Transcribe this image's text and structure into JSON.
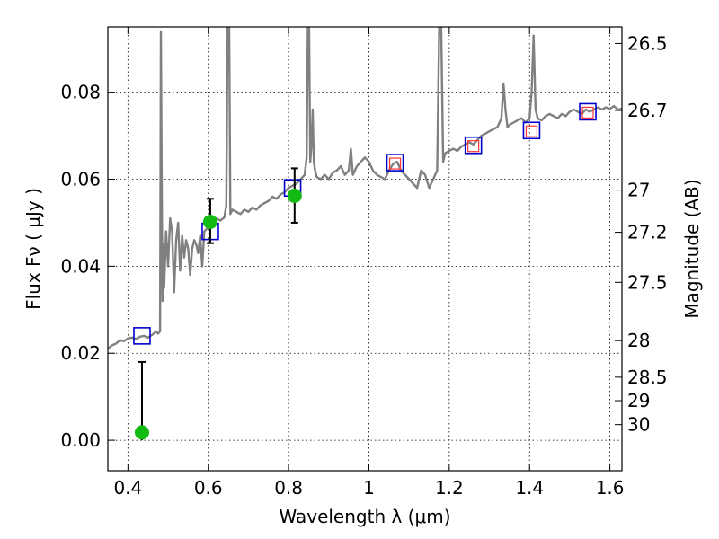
{
  "chart_data": {
    "type": "scatter",
    "title": "",
    "xlabel": "Wavelength  λ (μm)",
    "ylabel": "Flux  Fν  ( μJy )",
    "ylabel_right": "Magnitude (AB)",
    "xlim": [
      0.35,
      1.63
    ],
    "ylim": [
      -0.007,
      0.095
    ],
    "grid": true,
    "legend": "none",
    "x_ticks": [
      0.4,
      0.6,
      0.8,
      1.0,
      1.2,
      1.4,
      1.6
    ],
    "x_tick_labels": [
      "0.4",
      "0.6",
      "0.8",
      "1",
      "1.2",
      "1.4",
      "1.6"
    ],
    "y_ticks": [
      0.0,
      0.02,
      0.04,
      0.06,
      0.08
    ],
    "y_tick_labels": [
      "0.00",
      "0.02",
      "0.04",
      "0.06",
      "0.08"
    ],
    "right_ticks": [
      {
        "label": "26.5",
        "flux": 0.0912
      },
      {
        "label": "26.7",
        "flux": 0.0758
      },
      {
        "label": "27",
        "flux": 0.0575
      },
      {
        "label": "27.2",
        "flux": 0.0478
      },
      {
        "label": "27.5",
        "flux": 0.0363
      },
      {
        "label": "28",
        "flux": 0.0229
      },
      {
        "label": "28.5",
        "flux": 0.0145
      },
      {
        "label": "29",
        "flux": 0.0091
      },
      {
        "label": "30",
        "flux": 0.0036
      }
    ],
    "series": [
      {
        "type": "line",
        "color": "#808080",
        "x": [
          0.35,
          0.36,
          0.37,
          0.38,
          0.39,
          0.4,
          0.41,
          0.42,
          0.43,
          0.44,
          0.45,
          0.46,
          0.465,
          0.47,
          0.475,
          0.48,
          0.482,
          0.484,
          0.486,
          0.488,
          0.49,
          0.495,
          0.5,
          0.505,
          0.51,
          0.515,
          0.52,
          0.525,
          0.53,
          0.535,
          0.54,
          0.545,
          0.55,
          0.555,
          0.56,
          0.565,
          0.57,
          0.575,
          0.58,
          0.585,
          0.59,
          0.6,
          0.61,
          0.62,
          0.63,
          0.64,
          0.645,
          0.648,
          0.652,
          0.655,
          0.66,
          0.67,
          0.68,
          0.69,
          0.7,
          0.71,
          0.72,
          0.73,
          0.74,
          0.75,
          0.76,
          0.77,
          0.78,
          0.79,
          0.8,
          0.81,
          0.82,
          0.83,
          0.84,
          0.845,
          0.848,
          0.851,
          0.854,
          0.857,
          0.86,
          0.863,
          0.866,
          0.87,
          0.88,
          0.89,
          0.9,
          0.91,
          0.92,
          0.93,
          0.94,
          0.95,
          0.955,
          0.96,
          0.97,
          0.98,
          0.99,
          1.0,
          1.01,
          1.02,
          1.03,
          1.04,
          1.05,
          1.06,
          1.07,
          1.08,
          1.09,
          1.1,
          1.11,
          1.12,
          1.13,
          1.14,
          1.15,
          1.16,
          1.17,
          1.175,
          1.18,
          1.185,
          1.19,
          1.2,
          1.21,
          1.22,
          1.23,
          1.24,
          1.25,
          1.26,
          1.27,
          1.28,
          1.29,
          1.3,
          1.31,
          1.32,
          1.33,
          1.335,
          1.34,
          1.345,
          1.35,
          1.36,
          1.37,
          1.38,
          1.39,
          1.4,
          1.405,
          1.41,
          1.415,
          1.42,
          1.43,
          1.44,
          1.45,
          1.46,
          1.47,
          1.48,
          1.49,
          1.5,
          1.51,
          1.52,
          1.53,
          1.54,
          1.55,
          1.56,
          1.57,
          1.58,
          1.59,
          1.6,
          1.61,
          1.62,
          1.63
        ],
        "y": [
          0.021,
          0.0218,
          0.0222,
          0.023,
          0.0228,
          0.0234,
          0.0236,
          0.0233,
          0.0238,
          0.024,
          0.0236,
          0.0242,
          0.0246,
          0.025,
          0.0245,
          0.025,
          0.094,
          0.06,
          0.032,
          0.045,
          0.035,
          0.048,
          0.04,
          0.051,
          0.048,
          0.034,
          0.046,
          0.05,
          0.039,
          0.047,
          0.042,
          0.046,
          0.044,
          0.038,
          0.044,
          0.046,
          0.045,
          0.043,
          0.047,
          0.04,
          0.048,
          0.049,
          0.05,
          0.051,
          0.0505,
          0.0512,
          0.054,
          0.095,
          0.095,
          0.052,
          0.053,
          0.0525,
          0.052,
          0.053,
          0.0525,
          0.0535,
          0.053,
          0.054,
          0.0545,
          0.055,
          0.056,
          0.0555,
          0.0565,
          0.057,
          0.058,
          0.0585,
          0.059,
          0.06,
          0.061,
          0.065,
          0.095,
          0.095,
          0.064,
          0.068,
          0.076,
          0.064,
          0.062,
          0.0605,
          0.06,
          0.061,
          0.06,
          0.0615,
          0.062,
          0.063,
          0.061,
          0.062,
          0.067,
          0.061,
          0.063,
          0.064,
          0.065,
          0.064,
          0.062,
          0.061,
          0.0605,
          0.06,
          0.062,
          0.0635,
          0.064,
          0.062,
          0.061,
          0.06,
          0.059,
          0.058,
          0.062,
          0.061,
          0.058,
          0.06,
          0.062,
          0.095,
          0.095,
          0.064,
          0.066,
          0.0665,
          0.067,
          0.0665,
          0.0675,
          0.068,
          0.0685,
          0.068,
          0.069,
          0.07,
          0.0705,
          0.071,
          0.0715,
          0.072,
          0.074,
          0.082,
          0.076,
          0.072,
          0.0725,
          0.073,
          0.0735,
          0.074,
          0.073,
          0.074,
          0.08,
          0.093,
          0.076,
          0.074,
          0.0735,
          0.0745,
          0.075,
          0.0745,
          0.074,
          0.075,
          0.0745,
          0.0755,
          0.076,
          0.0755,
          0.075,
          0.076,
          0.0755,
          0.076,
          0.0765,
          0.076,
          0.0765,
          0.0762,
          0.0768,
          0.076,
          0.0762
        ]
      },
      {
        "type": "scatter",
        "marker": "square-open",
        "color": "#0000cc",
        "x": [
          0.435,
          0.605,
          0.81,
          1.065,
          1.26,
          1.405,
          1.545
        ],
        "y": [
          0.024,
          0.048,
          0.058,
          0.0638,
          0.0678,
          0.0712,
          0.0755
        ]
      },
      {
        "type": "scatter",
        "marker": "square-open",
        "color": "#ff3333",
        "x": [
          1.065,
          1.26,
          1.405,
          1.545
        ],
        "y": [
          0.0636,
          0.0676,
          0.071,
          0.0753
        ]
      },
      {
        "type": "scatter",
        "marker": "circle-filled",
        "color": "#11bb11",
        "x": [
          0.435,
          0.605,
          0.815
        ],
        "y": [
          0.0018,
          0.0502,
          0.0562
        ],
        "yerr": [
          [
            0.0,
            0.018
          ],
          [
            0.0453,
            0.0555
          ],
          [
            0.05,
            0.0625
          ]
        ]
      }
    ]
  }
}
